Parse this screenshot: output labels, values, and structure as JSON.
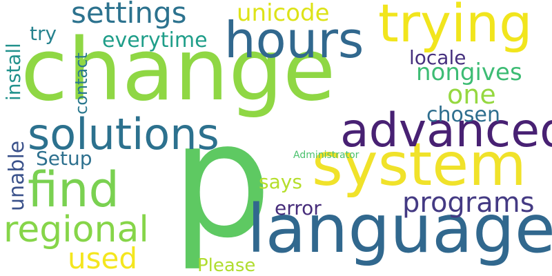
{
  "words": [
    {
      "text": "change",
      "color": "#8fd744"
    },
    {
      "text": "p",
      "color": "#5ec962"
    },
    {
      "text": "system",
      "color": "#f0e22a"
    },
    {
      "text": "language",
      "color": "#31688e"
    },
    {
      "text": "trying",
      "color": "#f1e51d"
    },
    {
      "text": "hours",
      "color": "#31688e"
    },
    {
      "text": "advanced",
      "color": "#482173"
    },
    {
      "text": "solutions",
      "color": "#2c718e"
    },
    {
      "text": "find",
      "color": "#7ad151"
    },
    {
      "text": "regional",
      "color": "#86d549"
    },
    {
      "text": "programs",
      "color": "#443a83"
    },
    {
      "text": "settings",
      "color": "#2c728e"
    },
    {
      "text": "unicode",
      "color": "#dde318"
    },
    {
      "text": "used",
      "color": "#f4e61e"
    },
    {
      "text": "one",
      "color": "#95d840"
    },
    {
      "text": "nongives",
      "color": "#3dbc74"
    },
    {
      "text": "everytime",
      "color": "#1f9e89"
    },
    {
      "text": "chosen",
      "color": "#2e6e8e"
    },
    {
      "text": "locale",
      "color": "#46307e"
    },
    {
      "text": "Setup",
      "color": "#2d708e"
    },
    {
      "text": "error",
      "color": "#472d7b"
    },
    {
      "text": "says",
      "color": "#b5de2b"
    },
    {
      "text": "Please",
      "color": "#b0dd2f"
    },
    {
      "text": "try",
      "color": "#26828e"
    },
    {
      "text": "install",
      "color": "#21918c"
    },
    {
      "text": "contact",
      "color": "#2a788e"
    },
    {
      "text": "unable",
      "color": "#3b528b"
    },
    {
      "text": "Administrator",
      "color": "#4ac16d"
    }
  ]
}
